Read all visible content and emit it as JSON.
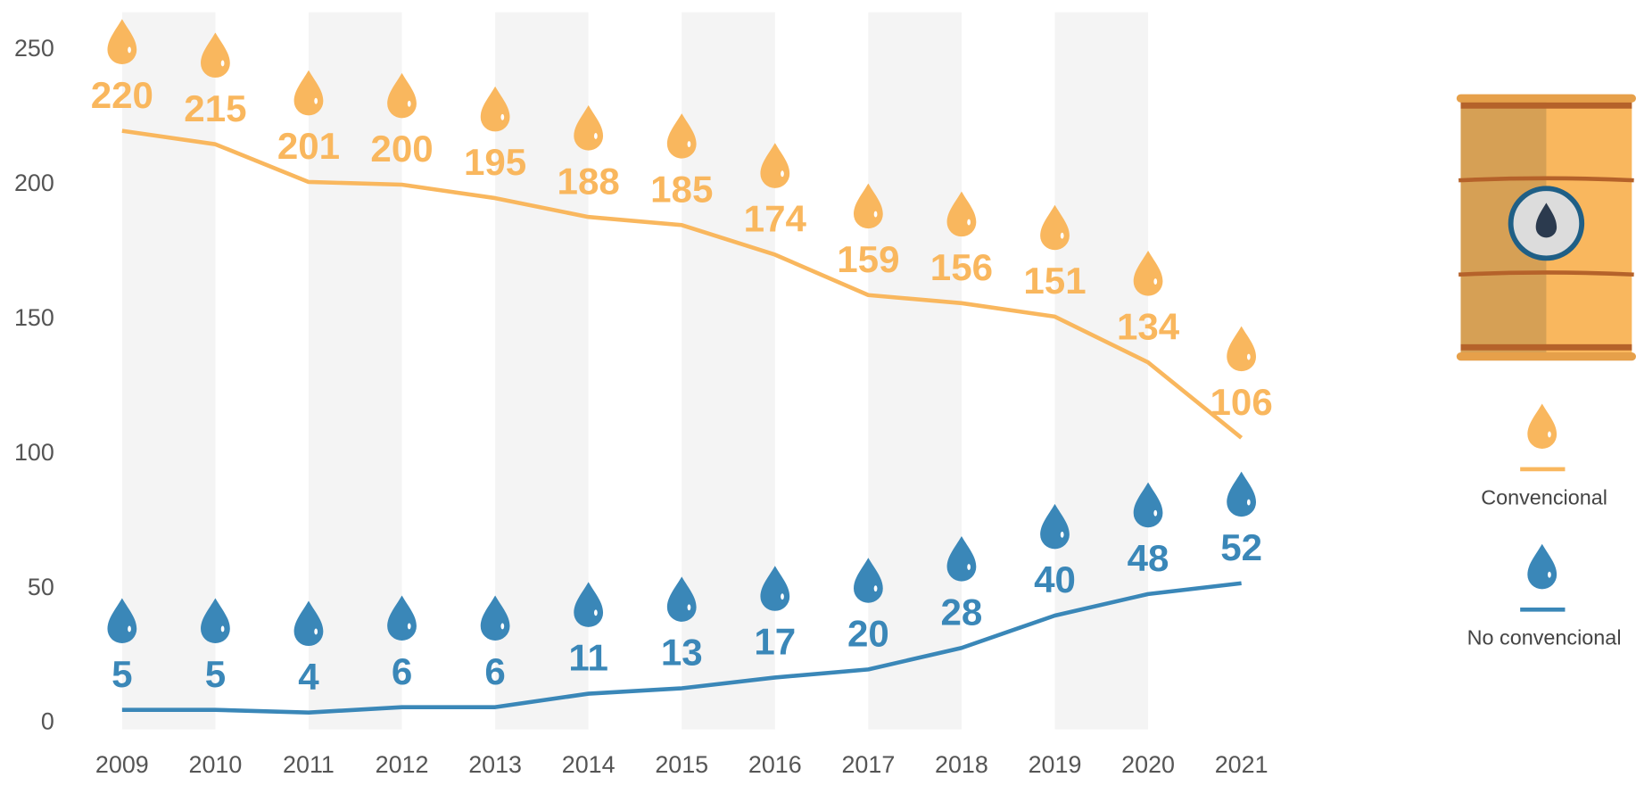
{
  "chart_data": {
    "type": "line",
    "categories": [
      "2009",
      "2010",
      "2011",
      "2012",
      "2013",
      "2014",
      "2015",
      "2016",
      "2017",
      "2018",
      "2019",
      "2020",
      "2021"
    ],
    "series": [
      {
        "name": "Convencional",
        "color": "#f9b75e",
        "values": [
          220,
          215,
          201,
          200,
          195,
          188,
          185,
          174,
          159,
          156,
          151,
          134,
          106
        ]
      },
      {
        "name": "No convencional",
        "color": "#3a87b8",
        "values": [
          5,
          5,
          4,
          6,
          6,
          11,
          13,
          17,
          20,
          28,
          40,
          48,
          52
        ]
      }
    ],
    "ylim": [
      0,
      264
    ],
    "yticks": [
      0,
      50,
      100,
      150,
      200,
      250
    ],
    "bands": true
  }
}
